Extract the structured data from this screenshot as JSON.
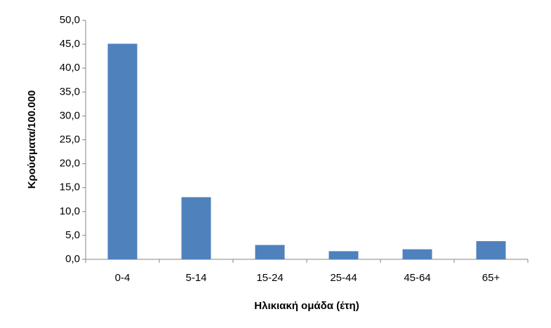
{
  "chart_data": {
    "type": "bar",
    "x_label": "Ηλικιακή ομάδα (έτη)",
    "y_label": "Κρούσματα/100.000",
    "categories": [
      "0-4",
      "5-14",
      "15-24",
      "25-44",
      "45-64",
      "65+"
    ],
    "values": [
      45.1,
      13.0,
      3.0,
      1.7,
      2.1,
      3.8
    ],
    "color": "#4f81bd",
    "ylim": [
      0,
      50
    ],
    "yticks": [
      {
        "value": 0,
        "label": "0,0"
      },
      {
        "value": 5,
        "label": "5,0"
      },
      {
        "value": 10,
        "label": "10,0"
      },
      {
        "value": 15,
        "label": "15,0"
      },
      {
        "value": 20,
        "label": "20,0"
      },
      {
        "value": 25,
        "label": "25,0"
      },
      {
        "value": 30,
        "label": "30,0"
      },
      {
        "value": 35,
        "label": "35,0"
      },
      {
        "value": 40,
        "label": "40,0"
      },
      {
        "value": 45,
        "label": "45,0"
      },
      {
        "value": 50,
        "label": "50,0"
      }
    ],
    "grid": false
  }
}
